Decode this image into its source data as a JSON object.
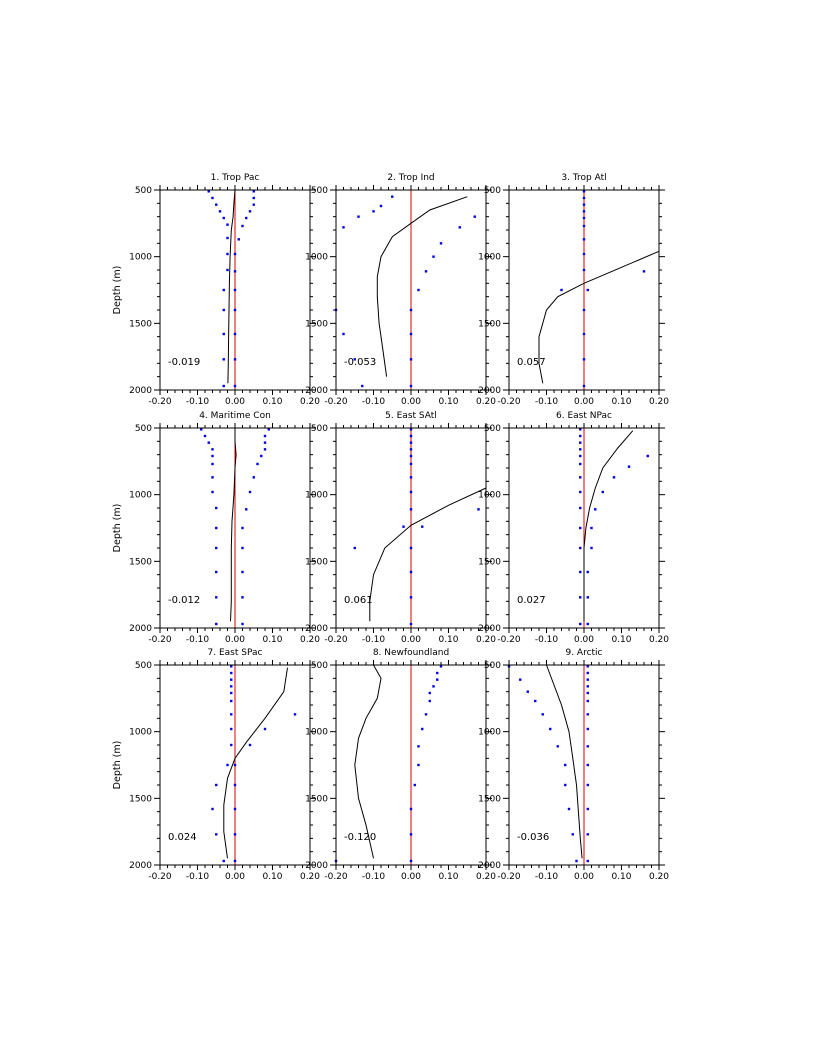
{
  "colors": {
    "zero_line": "#e00000",
    "dots": "#0000ee",
    "curve": "#000000"
  },
  "chart_data": [
    {
      "type": "line",
      "title": "1. Trop Pac",
      "ylabel": "Depth (m)",
      "xlabel": "",
      "xlim": [
        -0.2,
        0.2
      ],
      "ylim": [
        2000,
        500
      ],
      "xticks": [
        "-0.20",
        "-0.10",
        "0.00",
        "0.10",
        "0.20"
      ],
      "yticks": [
        "500",
        "1000",
        "1500",
        "2000"
      ],
      "stat": "-0.019",
      "curve": [
        [
          0.0,
          500
        ],
        [
          -0.003,
          600
        ],
        [
          -0.005,
          700
        ],
        [
          -0.01,
          800
        ],
        [
          -0.013,
          1000
        ],
        [
          -0.015,
          1200
        ],
        [
          -0.016,
          1400
        ],
        [
          -0.017,
          1600
        ],
        [
          -0.018,
          1800
        ],
        [
          -0.019,
          1950
        ]
      ],
      "dots": [
        [
          -0.07,
          510
        ],
        [
          -0.06,
          560
        ],
        [
          -0.05,
          610
        ],
        [
          -0.04,
          660
        ],
        [
          -0.03,
          710
        ],
        [
          -0.02,
          760
        ],
        [
          -0.02,
          860
        ],
        [
          -0.02,
          980
        ],
        [
          -0.02,
          1100
        ],
        [
          -0.03,
          1250
        ],
        [
          -0.03,
          1400
        ],
        [
          -0.03,
          1580
        ],
        [
          -0.03,
          1770
        ],
        [
          -0.03,
          1970
        ],
        [
          0.05,
          510
        ],
        [
          0.05,
          560
        ],
        [
          0.05,
          610
        ],
        [
          0.04,
          660
        ],
        [
          0.03,
          710
        ],
        [
          0.02,
          770
        ],
        [
          0.01,
          870
        ],
        [
          0.0,
          980
        ],
        [
          0.0,
          1110
        ],
        [
          0.0,
          1250
        ],
        [
          0.0,
          1400
        ],
        [
          0.0,
          1580
        ],
        [
          0.0,
          1770
        ],
        [
          0.0,
          1970
        ]
      ]
    },
    {
      "type": "line",
      "title": "2. Trop Ind",
      "ylabel": "",
      "xlabel": "",
      "xlim": [
        -0.2,
        0.2
      ],
      "ylim": [
        2000,
        500
      ],
      "xticks": [
        "-0.20",
        "-0.10",
        "0.00",
        "0.10",
        "0.20"
      ],
      "yticks": [
        "500",
        "1000",
        "1500",
        "2000"
      ],
      "stat": "-0.053",
      "curve": [
        [
          0.15,
          550
        ],
        [
          0.05,
          650
        ],
        [
          0.0,
          750
        ],
        [
          -0.05,
          850
        ],
        [
          -0.08,
          1000
        ],
        [
          -0.09,
          1150
        ],
        [
          -0.09,
          1300
        ],
        [
          -0.085,
          1500
        ],
        [
          -0.075,
          1700
        ],
        [
          -0.065,
          1900
        ]
      ],
      "dots": [
        [
          -0.05,
          550
        ],
        [
          -0.08,
          620
        ],
        [
          -0.1,
          660
        ],
        [
          -0.14,
          700
        ],
        [
          -0.18,
          780
        ],
        [
          0.17,
          700
        ],
        [
          0.13,
          780
        ],
        [
          0.08,
          900
        ],
        [
          0.06,
          1000
        ],
        [
          0.04,
          1110
        ],
        [
          0.02,
          1250
        ],
        [
          0.0,
          1400
        ],
        [
          0.0,
          1580
        ],
        [
          0.0,
          1770
        ],
        [
          0.0,
          1970
        ],
        [
          -0.2,
          1400
        ],
        [
          -0.18,
          1580
        ],
        [
          -0.15,
          1770
        ],
        [
          -0.13,
          1970
        ]
      ]
    },
    {
      "type": "line",
      "title": "3. Trop Atl",
      "ylabel": "",
      "xlabel": "",
      "xlim": [
        -0.2,
        0.2
      ],
      "ylim": [
        2000,
        500
      ],
      "xticks": [
        "-0.20",
        "-0.10",
        "0.00",
        "0.10",
        "0.20"
      ],
      "yticks": [
        "500",
        "1000",
        "1500",
        "2000"
      ],
      "stat": "0.057",
      "curve": [
        [
          0.2,
          960
        ],
        [
          0.1,
          1080
        ],
        [
          0.0,
          1200
        ],
        [
          -0.07,
          1300
        ],
        [
          -0.1,
          1400
        ],
        [
          -0.12,
          1600
        ],
        [
          -0.12,
          1800
        ],
        [
          -0.11,
          1950
        ]
      ],
      "dots": [
        [
          0.0,
          510
        ],
        [
          0.0,
          560
        ],
        [
          0.0,
          610
        ],
        [
          0.0,
          660
        ],
        [
          0.0,
          710
        ],
        [
          0.0,
          770
        ],
        [
          0.0,
          870
        ],
        [
          0.0,
          980
        ],
        [
          0.0,
          1100
        ],
        [
          0.16,
          1110
        ],
        [
          -0.06,
          1250
        ],
        [
          0.01,
          1250
        ],
        [
          0.0,
          1400
        ],
        [
          0.0,
          1580
        ],
        [
          0.0,
          1770
        ],
        [
          0.0,
          1970
        ]
      ]
    },
    {
      "type": "line",
      "title": "4. Maritime Con",
      "ylabel": "Depth (m)",
      "xlabel": "",
      "xlim": [
        -0.2,
        0.2
      ],
      "ylim": [
        2000,
        500
      ],
      "xticks": [
        "-0.20",
        "-0.10",
        "0.00",
        "0.10",
        "0.20"
      ],
      "yticks": [
        "500",
        "1000",
        "1500",
        "2000"
      ],
      "stat": "-0.012",
      "curve": [
        [
          0.0,
          500
        ],
        [
          0.0,
          600
        ],
        [
          0.003,
          700
        ],
        [
          0.0,
          800
        ],
        [
          -0.003,
          1000
        ],
        [
          -0.008,
          1200
        ],
        [
          -0.01,
          1400
        ],
        [
          -0.01,
          1600
        ],
        [
          -0.01,
          1800
        ],
        [
          -0.012,
          1950
        ]
      ],
      "dots": [
        [
          -0.09,
          510
        ],
        [
          -0.08,
          560
        ],
        [
          -0.07,
          610
        ],
        [
          -0.06,
          660
        ],
        [
          -0.06,
          710
        ],
        [
          -0.06,
          770
        ],
        [
          -0.06,
          870
        ],
        [
          -0.06,
          980
        ],
        [
          -0.05,
          1100
        ],
        [
          -0.05,
          1250
        ],
        [
          -0.05,
          1400
        ],
        [
          -0.05,
          1580
        ],
        [
          -0.05,
          1770
        ],
        [
          -0.05,
          1970
        ],
        [
          0.09,
          510
        ],
        [
          0.08,
          560
        ],
        [
          0.08,
          610
        ],
        [
          0.08,
          660
        ],
        [
          0.07,
          710
        ],
        [
          0.06,
          770
        ],
        [
          0.05,
          870
        ],
        [
          0.04,
          980
        ],
        [
          0.03,
          1110
        ],
        [
          0.02,
          1250
        ],
        [
          0.02,
          1400
        ],
        [
          0.02,
          1580
        ],
        [
          0.02,
          1770
        ],
        [
          0.02,
          1970
        ]
      ]
    },
    {
      "type": "line",
      "title": "5. East SAtl",
      "ylabel": "",
      "xlabel": "",
      "xlim": [
        -0.2,
        0.2
      ],
      "ylim": [
        2000,
        500
      ],
      "xticks": [
        "-0.20",
        "-0.10",
        "0.00",
        "0.10",
        "0.20"
      ],
      "yticks": [
        "500",
        "1000",
        "1500",
        "2000"
      ],
      "stat": "0.061",
      "curve": [
        [
          0.2,
          950
        ],
        [
          0.1,
          1080
        ],
        [
          0.0,
          1230
        ],
        [
          -0.07,
          1400
        ],
        [
          -0.1,
          1600
        ],
        [
          -0.11,
          1800
        ],
        [
          -0.11,
          1950
        ]
      ],
      "dots": [
        [
          0.0,
          510
        ],
        [
          0.0,
          560
        ],
        [
          0.0,
          610
        ],
        [
          0.0,
          660
        ],
        [
          0.0,
          710
        ],
        [
          0.0,
          770
        ],
        [
          0.0,
          870
        ],
        [
          0.0,
          980
        ],
        [
          0.0,
          1110
        ],
        [
          0.18,
          1110
        ],
        [
          -0.02,
          1240
        ],
        [
          0.03,
          1240
        ],
        [
          -0.15,
          1400
        ],
        [
          0.0,
          1400
        ],
        [
          0.0,
          1580
        ],
        [
          0.0,
          1770
        ],
        [
          0.0,
          1970
        ]
      ]
    },
    {
      "type": "line",
      "title": "6. East NPac",
      "ylabel": "",
      "xlabel": "",
      "xlim": [
        -0.2,
        0.2
      ],
      "ylim": [
        2000,
        500
      ],
      "xticks": [
        "-0.20",
        "-0.10",
        "0.00",
        "0.10",
        "0.20"
      ],
      "yticks": [
        "500",
        "1000",
        "1500",
        "2000"
      ],
      "stat": "0.027",
      "curve": [
        [
          0.13,
          520
        ],
        [
          0.09,
          650
        ],
        [
          0.05,
          800
        ],
        [
          0.03,
          950
        ],
        [
          0.015,
          1100
        ],
        [
          0.005,
          1250
        ],
        [
          0.0,
          1400
        ],
        [
          0.0,
          1600
        ],
        [
          0.0,
          1800
        ],
        [
          0.0,
          1950
        ]
      ],
      "dots": [
        [
          -0.01,
          510
        ],
        [
          -0.01,
          560
        ],
        [
          -0.01,
          610
        ],
        [
          -0.01,
          660
        ],
        [
          -0.01,
          710
        ],
        [
          -0.01,
          770
        ],
        [
          -0.01,
          870
        ],
        [
          -0.01,
          980
        ],
        [
          -0.01,
          1100
        ],
        [
          -0.01,
          1250
        ],
        [
          -0.01,
          1400
        ],
        [
          -0.01,
          1580
        ],
        [
          -0.01,
          1770
        ],
        [
          -0.01,
          1970
        ],
        [
          0.17,
          710
        ],
        [
          0.12,
          790
        ],
        [
          0.08,
          870
        ],
        [
          0.05,
          980
        ],
        [
          0.03,
          1110
        ],
        [
          0.02,
          1250
        ],
        [
          0.02,
          1400
        ],
        [
          0.01,
          1580
        ],
        [
          0.01,
          1770
        ],
        [
          0.01,
          1970
        ]
      ]
    },
    {
      "type": "line",
      "title": "7. East SPac",
      "ylabel": "Depth (m)",
      "xlabel": "",
      "xlim": [
        -0.2,
        0.2
      ],
      "ylim": [
        2000,
        500
      ],
      "xticks": [
        "-0.20",
        "-0.10",
        "0.00",
        "0.10",
        "0.20"
      ],
      "yticks": [
        "500",
        "1000",
        "1500",
        "2000"
      ],
      "stat": "0.024",
      "curve": [
        [
          0.14,
          520
        ],
        [
          0.13,
          700
        ],
        [
          0.08,
          900
        ],
        [
          0.03,
          1080
        ],
        [
          0.0,
          1200
        ],
        [
          -0.02,
          1350
        ],
        [
          -0.03,
          1550
        ],
        [
          -0.03,
          1750
        ],
        [
          -0.02,
          1950
        ]
      ],
      "dots": [
        [
          -0.01,
          510
        ],
        [
          -0.01,
          560
        ],
        [
          -0.01,
          610
        ],
        [
          -0.01,
          660
        ],
        [
          -0.01,
          710
        ],
        [
          -0.01,
          770
        ],
        [
          -0.01,
          870
        ],
        [
          -0.01,
          980
        ],
        [
          -0.01,
          1100
        ],
        [
          -0.02,
          1250
        ],
        [
          -0.05,
          1400
        ],
        [
          -0.06,
          1580
        ],
        [
          -0.05,
          1770
        ],
        [
          -0.03,
          1970
        ],
        [
          0.16,
          870
        ],
        [
          0.08,
          980
        ],
        [
          0.04,
          1100
        ],
        [
          0.0,
          1250
        ],
        [
          0.0,
          1400
        ],
        [
          0.0,
          1580
        ],
        [
          0.0,
          1770
        ],
        [
          0.0,
          1970
        ]
      ]
    },
    {
      "type": "line",
      "title": "8. Newfoundland",
      "ylabel": "",
      "xlabel": "",
      "xlim": [
        -0.2,
        0.2
      ],
      "ylim": [
        2000,
        500
      ],
      "xticks": [
        "-0.20",
        "-0.10",
        "0.00",
        "0.10",
        "0.20"
      ],
      "yticks": [
        "500",
        "1000",
        "1500",
        "2000"
      ],
      "stat": "-0.120",
      "curve": [
        [
          -0.1,
          500
        ],
        [
          -0.08,
          600
        ],
        [
          -0.09,
          750
        ],
        [
          -0.12,
          900
        ],
        [
          -0.14,
          1050
        ],
        [
          -0.15,
          1250
        ],
        [
          -0.14,
          1500
        ],
        [
          -0.12,
          1700
        ],
        [
          -0.1,
          1950
        ]
      ],
      "dots": [
        [
          0.08,
          510
        ],
        [
          0.07,
          560
        ],
        [
          0.07,
          610
        ],
        [
          0.06,
          660
        ],
        [
          0.05,
          710
        ],
        [
          0.05,
          770
        ],
        [
          0.04,
          870
        ],
        [
          0.03,
          980
        ],
        [
          0.02,
          1110
        ],
        [
          0.02,
          1250
        ],
        [
          0.01,
          1400
        ],
        [
          0.0,
          1580
        ],
        [
          0.0,
          1770
        ],
        [
          0.0,
          1970
        ],
        [
          -0.2,
          1970
        ]
      ]
    },
    {
      "type": "line",
      "title": "9. Arctic",
      "ylabel": "",
      "xlabel": "",
      "xlim": [
        -0.2,
        0.2
      ],
      "ylim": [
        2000,
        500
      ],
      "xticks": [
        "-0.20",
        "-0.10",
        "0.00",
        "0.10",
        "0.20"
      ],
      "yticks": [
        "500",
        "1000",
        "1500",
        "2000"
      ],
      "stat": "-0.036",
      "curve": [
        [
          -0.1,
          500
        ],
        [
          -0.08,
          650
        ],
        [
          -0.06,
          800
        ],
        [
          -0.04,
          1000
        ],
        [
          -0.03,
          1200
        ],
        [
          -0.02,
          1400
        ],
        [
          -0.015,
          1600
        ],
        [
          -0.01,
          1800
        ],
        [
          -0.005,
          1950
        ]
      ],
      "dots": [
        [
          -0.2,
          510
        ],
        [
          -0.17,
          610
        ],
        [
          -0.15,
          700
        ],
        [
          -0.13,
          770
        ],
        [
          -0.11,
          870
        ],
        [
          -0.09,
          980
        ],
        [
          -0.07,
          1110
        ],
        [
          -0.05,
          1250
        ],
        [
          -0.05,
          1400
        ],
        [
          -0.04,
          1580
        ],
        [
          -0.03,
          1770
        ],
        [
          -0.02,
          1970
        ],
        [
          0.01,
          510
        ],
        [
          0.01,
          560
        ],
        [
          0.01,
          610
        ],
        [
          0.01,
          660
        ],
        [
          0.01,
          710
        ],
        [
          0.01,
          770
        ],
        [
          0.01,
          870
        ],
        [
          0.01,
          980
        ],
        [
          0.01,
          1110
        ],
        [
          0.01,
          1250
        ],
        [
          0.01,
          1400
        ],
        [
          0.01,
          1580
        ],
        [
          0.01,
          1770
        ],
        [
          0.01,
          1970
        ]
      ]
    }
  ]
}
